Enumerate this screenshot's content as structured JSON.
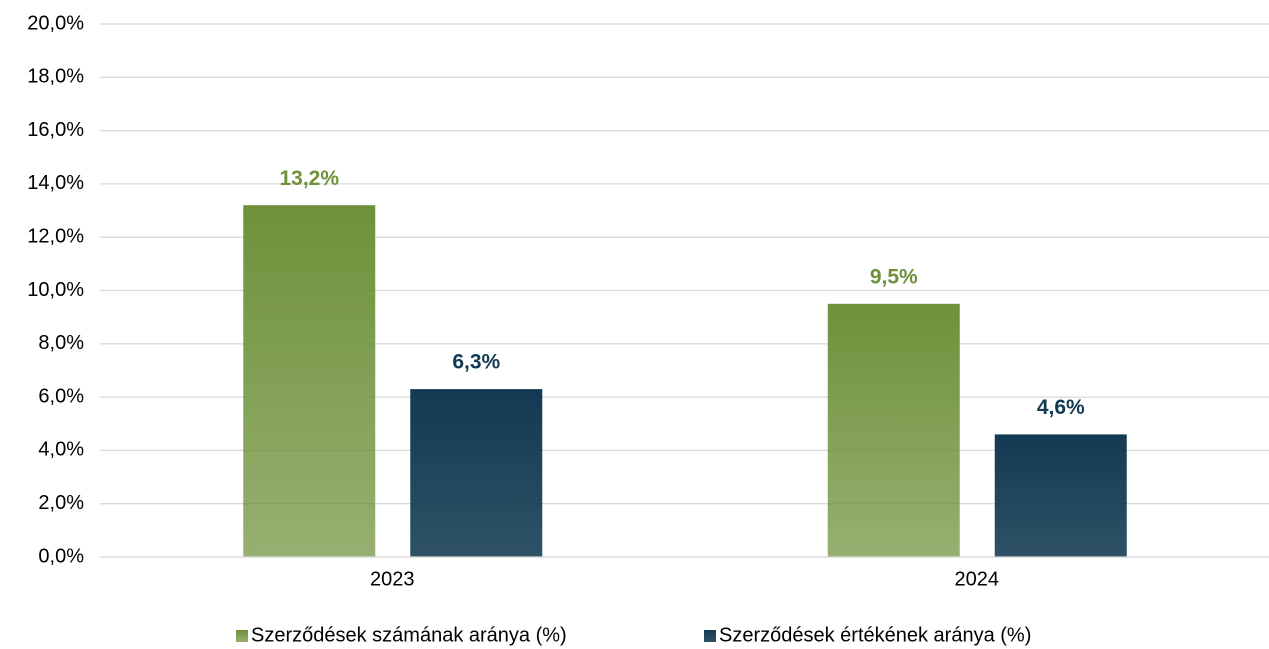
{
  "chart_data": {
    "type": "bar",
    "categories": [
      "2023",
      "2024"
    ],
    "series": [
      {
        "name": "Szerződések számának aránya (%)",
        "color": "#6e913a",
        "values": [
          13.2,
          9.5
        ],
        "value_labels": [
          "13,2%",
          "9,5%"
        ]
      },
      {
        "name": "Szerződések értékének aránya (%)",
        "color": "#123a52",
        "values": [
          6.3,
          4.6
        ],
        "value_labels": [
          "6,3%",
          "4,6%"
        ]
      }
    ],
    "ylim": [
      0,
      20
    ],
    "yticks": [
      {
        "value": 0,
        "label": "0,0%"
      },
      {
        "value": 2,
        "label": "2,0%"
      },
      {
        "value": 4,
        "label": "4,0%"
      },
      {
        "value": 6,
        "label": "6,0%"
      },
      {
        "value": 8,
        "label": "8,0%"
      },
      {
        "value": 10,
        "label": "10,0%"
      },
      {
        "value": 12,
        "label": "12,0%"
      },
      {
        "value": 14,
        "label": "14,0%"
      },
      {
        "value": 16,
        "label": "16,0%"
      },
      {
        "value": 18,
        "label": "18,0%"
      },
      {
        "value": 20,
        "label": "20,0%"
      }
    ],
    "grid": true,
    "legend": "bottom"
  }
}
